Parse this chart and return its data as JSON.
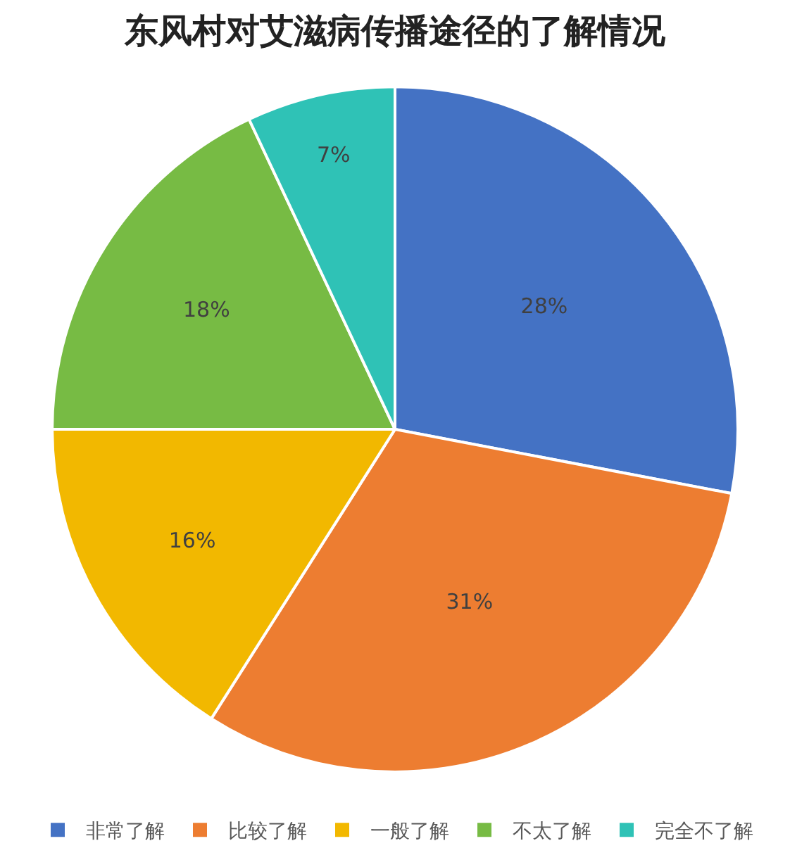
{
  "chart_data": {
    "type": "pie",
    "title": "东风村对艾滋病传播途径的了解情况",
    "categories": [
      "非常了解",
      "比较了解",
      "一般了解",
      "不太了解",
      "完全不了解"
    ],
    "values": [
      28,
      31,
      16,
      18,
      7
    ],
    "colors": [
      "#4472c4",
      "#ed7d31",
      "#f2b800",
      "#77bb44",
      "#2fc2b6"
    ],
    "value_labels": [
      "28%",
      "31%",
      "16%",
      "18%",
      "7%"
    ],
    "legend": "bottom"
  }
}
